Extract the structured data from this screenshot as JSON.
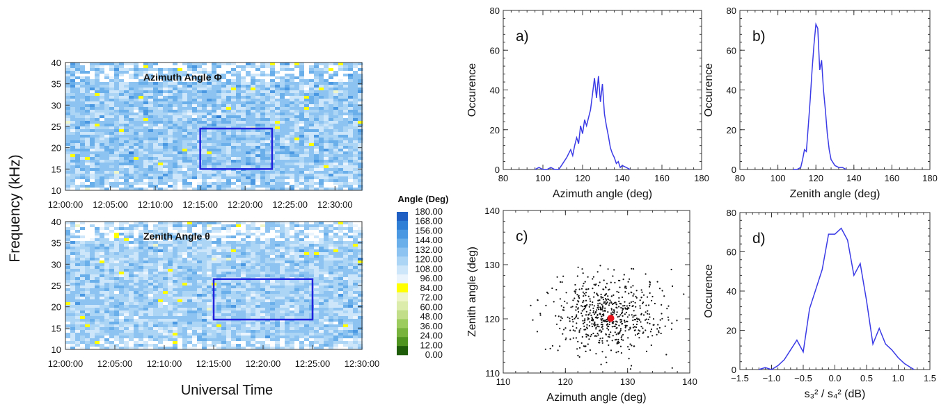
{
  "labels": {
    "y_axis_left": "Frequency  (kHz)",
    "x_axis_left": "Universal Time",
    "colorbar_title": "Angle  (Deg)"
  },
  "colorbar": {
    "ticks": [
      "180.00",
      "168.00",
      "156.00",
      "144.00",
      "132.00",
      "120.00",
      "108.00",
      "96.00",
      "84.00",
      "72.00",
      "60.00",
      "48.00",
      "36.00",
      "24.00",
      "12.00",
      "0.00"
    ],
    "colors": [
      "#1f5fc4",
      "#2f7fd6",
      "#4a97e2",
      "#6aaeea",
      "#8cc3f0",
      "#acd5f5",
      "#cde6f9",
      "#eaf4fc",
      "#ffff00",
      "#eef5c8",
      "#dbecab",
      "#c2de88",
      "#9ccc5e",
      "#77b33d",
      "#4f9420",
      "#1e5c0a"
    ]
  },
  "colors": {
    "blue_line": "#3a3ae6",
    "rect": "#2222dd",
    "dot": "#e8141c"
  },
  "chart_data": [
    {
      "id": "azimuth-spectrogram",
      "type": "heatmap",
      "title": "Azimuth Angle Φ",
      "xlabel": "",
      "ylabel": "Frequency  (kHz)",
      "xticks": [
        "12:00:00",
        "12:05:00",
        "12:10:00",
        "12:15:00",
        "12:20:00",
        "12:25:00",
        "12:30:00"
      ],
      "yticks": [
        10,
        15,
        20,
        25,
        30,
        35,
        40
      ],
      "ylim": [
        10,
        40
      ],
      "xlim_min": [
        0,
        33
      ],
      "dominant_angle_deg": 125,
      "highlight_box": {
        "t_start": "12:15:00",
        "t_end": "12:23:00",
        "f_low": 15,
        "f_high": 24.5
      }
    },
    {
      "id": "zenith-spectrogram",
      "type": "heatmap",
      "title": "Zenith Angle  θ",
      "xlabel": "Universal Time",
      "ylabel": "Frequency  (kHz)",
      "xticks": [
        "12:00:00",
        "12:05:00",
        "12:10:00",
        "12:15:00",
        "12:20:00",
        "12:25:00",
        "12:30:00"
      ],
      "yticks": [
        10,
        15,
        20,
        25,
        30,
        35,
        40
      ],
      "ylim": [
        10,
        40
      ],
      "xlim_min": [
        0,
        30
      ],
      "dominant_angle_deg": 120,
      "highlight_box": {
        "t_start": "12:15:00",
        "t_end": "12:25:00",
        "f_low": 17,
        "f_high": 26.5
      }
    },
    {
      "id": "a",
      "type": "line",
      "panel_label": "a)",
      "xlabel": "Azimuth angle (deg)",
      "ylabel": "Occurence",
      "xlim": [
        80,
        180
      ],
      "ylim": [
        0,
        80
      ],
      "xticks": [
        80,
        100,
        120,
        140,
        160,
        180
      ],
      "yticks": [
        0,
        20,
        40,
        60,
        80
      ],
      "x": [
        96,
        98,
        100,
        102,
        104,
        106,
        108,
        110,
        112,
        113,
        114,
        115,
        116,
        117,
        118,
        119,
        120,
        121,
        122,
        123,
        124,
        125,
        126,
        127,
        128,
        129,
        130,
        131,
        132,
        133,
        134,
        135,
        136,
        137,
        138,
        139,
        140,
        142,
        144
      ],
      "y": [
        0,
        1,
        0,
        0,
        1,
        0,
        0,
        3,
        6,
        8,
        10,
        7,
        12,
        16,
        13,
        22,
        18,
        25,
        22,
        26,
        30,
        38,
        46,
        36,
        47,
        34,
        43,
        28,
        22,
        17,
        11,
        8,
        6,
        3,
        4,
        1,
        2,
        1,
        0
      ]
    },
    {
      "id": "b",
      "type": "line",
      "panel_label": "b)",
      "xlabel": "Zenith angle (deg)",
      "ylabel": "Occurence",
      "xlim": [
        80,
        180
      ],
      "ylim": [
        0,
        80
      ],
      "xticks": [
        80,
        100,
        120,
        140,
        160,
        180
      ],
      "yticks": [
        0,
        20,
        40,
        60,
        80
      ],
      "x": [
        108,
        110,
        112,
        113,
        114,
        115,
        116,
        117,
        118,
        119,
        120,
        121,
        122,
        123,
        124,
        125,
        126,
        127,
        128,
        130,
        132,
        134,
        136
      ],
      "y": [
        0,
        0,
        1,
        5,
        10,
        9,
        22,
        35,
        50,
        63,
        73,
        71,
        50,
        55,
        40,
        30,
        18,
        10,
        5,
        2,
        1,
        1,
        0
      ]
    },
    {
      "id": "c",
      "type": "scatter",
      "panel_label": "c)",
      "xlabel": "Azimuth angle (deg)",
      "ylabel": "Zenith angle (deg)",
      "xlim": [
        110,
        140
      ],
      "ylim": [
        110,
        140
      ],
      "xticks": [
        110,
        120,
        130,
        140
      ],
      "yticks": [
        110,
        120,
        130,
        140
      ],
      "cloud_center": [
        127,
        121
      ],
      "cloud_spread_deg": [
        4.5,
        3.5
      ],
      "n_points": 620,
      "highlight_point": [
        127.3,
        120.1
      ]
    },
    {
      "id": "d",
      "type": "line",
      "panel_label": "d)",
      "xlabel": "s₃² / s₄² (dB)",
      "ylabel": "Occurence",
      "xlim": [
        -1.5,
        1.5
      ],
      "ylim": [
        0,
        80
      ],
      "xticks": [
        -1.5,
        -1.0,
        -0.5,
        0.0,
        0.5,
        1.0,
        1.5
      ],
      "xticklabels": [
        "−1.5",
        "−1.0",
        "−0.5",
        "0.0",
        "0.5",
        "1.0",
        "1.5"
      ],
      "yticks": [
        0,
        20,
        40,
        60,
        80
      ],
      "x": [
        -1.2,
        -1.1,
        -1.0,
        -0.9,
        -0.8,
        -0.7,
        -0.6,
        -0.5,
        -0.4,
        -0.3,
        -0.2,
        -0.1,
        0.0,
        0.1,
        0.2,
        0.3,
        0.4,
        0.5,
        0.6,
        0.7,
        0.8,
        0.9,
        1.0,
        1.1,
        1.2,
        1.25
      ],
      "y": [
        0,
        1,
        0,
        2,
        5,
        10,
        15,
        9,
        31,
        41,
        51,
        69,
        69,
        72,
        66,
        48,
        54,
        35,
        13,
        21,
        13,
        10,
        6,
        3,
        1,
        0
      ]
    }
  ]
}
